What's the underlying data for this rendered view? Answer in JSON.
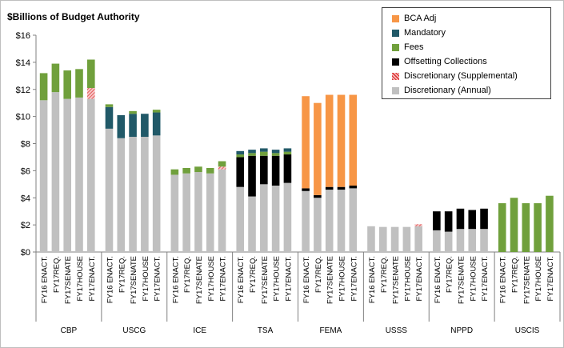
{
  "chart_data": {
    "type": "bar",
    "stacked": true,
    "ylabel": "$Billions of Budget Authority",
    "ylim": [
      0,
      16
    ],
    "yticks": [
      "$0",
      "$2",
      "$4",
      "$6",
      "$8",
      "$10",
      "$12",
      "$14",
      "$16"
    ],
    "grid": false,
    "legend_position": "top-right",
    "groups": [
      {
        "name": "CBP",
        "categories": [
          "FY16 ENACT.",
          "FY17REQ.",
          "FY17SENATE",
          "FY17HOUSE",
          "FY17ENACT."
        ]
      },
      {
        "name": "USCG",
        "categories": [
          "FY16 ENACT.",
          "FY17REQ.",
          "FY17SENATE",
          "FY17HOUSE",
          "FY17ENACT."
        ]
      },
      {
        "name": "ICE",
        "categories": [
          "FY16 ENACT.",
          "FY17REQ.",
          "FY17SENATE",
          "FY17HOUSE",
          "FY17ENACT."
        ]
      },
      {
        "name": "TSA",
        "categories": [
          "FY16 ENACT.",
          "FY17REQ.",
          "FY17SENATE",
          "FY17HOUSE",
          "FY17ENACT."
        ]
      },
      {
        "name": "FEMA",
        "categories": [
          "FY16 ENACT.",
          "FY17REQ.",
          "FY17SENATE",
          "FY17HOUSE",
          "FY17ENACT."
        ]
      },
      {
        "name": "USSS",
        "categories": [
          "FY16 ENACT.",
          "FY17REQ.",
          "FY17SENATE",
          "FY17HOUSE",
          "FY17ENACT."
        ]
      },
      {
        "name": "NPPD",
        "categories": [
          "FY16 ENACT.",
          "FY17REQ.",
          "FY17SENATE",
          "FY17HOUSE",
          "FY17ENACT."
        ]
      },
      {
        "name": "USCIS",
        "categories": [
          "FY16 ENACT.",
          "FY17REQ.",
          "FY17SENATE",
          "FY17HOUSE",
          "FY17ENACT."
        ]
      }
    ],
    "series": [
      {
        "name": "Discretionary (Annual)",
        "color": "#c0c0c0",
        "pattern": "solid",
        "values": [
          [
            11.2,
            11.8,
            11.3,
            11.4,
            11.3
          ],
          [
            9.1,
            8.4,
            8.5,
            8.5,
            8.6
          ],
          [
            5.7,
            5.8,
            5.9,
            5.8,
            6.1
          ],
          [
            4.8,
            4.1,
            5.0,
            4.9,
            5.1
          ],
          [
            4.5,
            4.0,
            4.6,
            4.6,
            4.7
          ],
          [
            1.9,
            1.85,
            1.85,
            1.85,
            1.9
          ],
          [
            1.6,
            1.5,
            1.7,
            1.7,
            1.7
          ],
          [
            0,
            0,
            0,
            0,
            0
          ]
        ]
      },
      {
        "name": "Discretionary (Supplemental)",
        "color": "#e03c3c",
        "pattern": "hatched",
        "values": [
          [
            0,
            0,
            0,
            0,
            0.8
          ],
          [
            0,
            0,
            0,
            0,
            0
          ],
          [
            0,
            0,
            0,
            0,
            0.2
          ],
          [
            0,
            0,
            0,
            0,
            0
          ],
          [
            0,
            0,
            0,
            0,
            0
          ],
          [
            0,
            0,
            0,
            0,
            0.15
          ],
          [
            0,
            0,
            0,
            0,
            0
          ],
          [
            0,
            0,
            0,
            0,
            0
          ]
        ]
      },
      {
        "name": "Offsetting Collections",
        "color": "#000000",
        "pattern": "solid",
        "values": [
          [
            0,
            0,
            0,
            0,
            0
          ],
          [
            0,
            0,
            0,
            0,
            0
          ],
          [
            0,
            0,
            0,
            0,
            0
          ],
          [
            2.2,
            3.0,
            2.1,
            2.2,
            2.1
          ],
          [
            0.2,
            0.2,
            0.2,
            0.2,
            0.2
          ],
          [
            0,
            0,
            0,
            0,
            0
          ],
          [
            1.4,
            1.5,
            1.5,
            1.4,
            1.5
          ],
          [
            0,
            0,
            0,
            0,
            0
          ]
        ]
      },
      {
        "name": "Fees",
        "color": "#70a03c",
        "pattern": "solid",
        "values": [
          [
            2.0,
            2.1,
            2.1,
            2.1,
            2.1
          ],
          [
            0,
            0,
            0,
            0,
            0
          ],
          [
            0.4,
            0.4,
            0.4,
            0.4,
            0.4
          ],
          [
            0.2,
            0.2,
            0.3,
            0.2,
            0.2
          ],
          [
            0,
            0,
            0,
            0,
            0
          ],
          [
            0,
            0,
            0,
            0,
            0
          ],
          [
            0,
            0,
            0,
            0,
            0
          ],
          [
            3.6,
            4.0,
            3.6,
            3.6,
            4.15
          ]
        ]
      },
      {
        "name": "Mandatory",
        "color": "#215968",
        "pattern": "solid",
        "values": [
          [
            0,
            0,
            0,
            0,
            0
          ],
          [
            1.6,
            1.7,
            1.7,
            1.7,
            1.7
          ],
          [
            0,
            0,
            0,
            0,
            0
          ],
          [
            0.25,
            0.25,
            0.25,
            0.25,
            0.25
          ],
          [
            0,
            0,
            0,
            0,
            0
          ],
          [
            0,
            0,
            0,
            0,
            0
          ],
          [
            0,
            0,
            0,
            0,
            0
          ],
          [
            0,
            0,
            0,
            0,
            0
          ]
        ]
      },
      {
        "name": "Fees",
        "color": "#70a03c",
        "pattern": "solid",
        "note_same_legend": true,
        "values": [
          [
            0,
            0,
            0,
            0,
            0
          ],
          [
            0.2,
            0,
            0.2,
            0,
            0.2
          ],
          [
            0,
            0,
            0,
            0,
            0
          ],
          [
            0,
            0,
            0,
            0,
            0
          ],
          [
            0,
            0,
            0,
            0,
            0
          ],
          [
            0,
            0,
            0,
            0,
            0
          ],
          [
            0,
            0,
            0,
            0,
            0
          ],
          [
            0,
            0,
            0,
            0,
            0
          ]
        ]
      },
      {
        "name": "BCA Adj",
        "color": "#f79646",
        "pattern": "solid",
        "values": [
          [
            0,
            0,
            0,
            0,
            0
          ],
          [
            0,
            0,
            0,
            0,
            0
          ],
          [
            0,
            0,
            0,
            0,
            0
          ],
          [
            0,
            0,
            0,
            0,
            0
          ],
          [
            6.8,
            6.8,
            6.8,
            6.8,
            6.7
          ],
          [
            0,
            0,
            0,
            0,
            0
          ],
          [
            0,
            0,
            0,
            0,
            0
          ],
          [
            0,
            0,
            0,
            0,
            0
          ]
        ]
      }
    ],
    "legend": [
      {
        "label": "BCA Adj",
        "color": "#f79646",
        "pattern": "solid"
      },
      {
        "label": "Mandatory",
        "color": "#215968",
        "pattern": "solid"
      },
      {
        "label": "Fees",
        "color": "#70a03c",
        "pattern": "solid"
      },
      {
        "label": "Offsetting Collections",
        "color": "#000000",
        "pattern": "solid"
      },
      {
        "label": "Discretionary (Supplemental)",
        "color": "#e03c3c",
        "pattern": "hatched"
      },
      {
        "label": "Discretionary (Annual)",
        "color": "#c0c0c0",
        "pattern": "solid"
      }
    ]
  }
}
